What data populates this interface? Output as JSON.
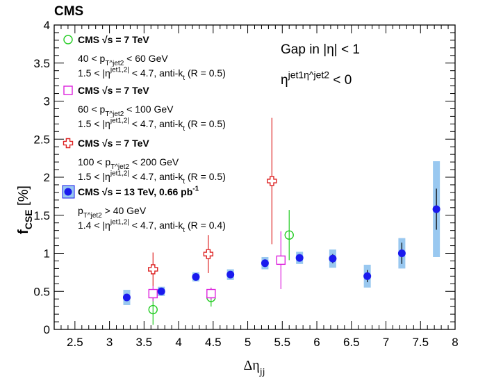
{
  "chart_data": {
    "type": "scatter",
    "title": "CMS",
    "xlabel": "Δη_jj",
    "ylabel": "f_CSE [%]",
    "xlim": [
      2.2,
      8.0
    ],
    "ylim": [
      0,
      4
    ],
    "x_ticks": [
      "2.5",
      "3",
      "3.5",
      "4",
      "4.5",
      "5",
      "5.5",
      "6",
      "6.5",
      "7",
      "7.5",
      "8"
    ],
    "y_ticks": [
      "0",
      "0.5",
      "1",
      "1.5",
      "2",
      "2.5",
      "3",
      "3.5",
      "4"
    ],
    "annotations": [
      "Gap in |η| < 1",
      "η^jet1 η^jet2 < 0"
    ],
    "series": [
      {
        "name": "CMS √s = 7 TeV",
        "lines": [
          "40 < p_T^jet2 < 60 GeV",
          "1.5 < |η^jet1,2| < 4.7, anti-k_t (R = 0.5)"
        ],
        "marker": "open-circle",
        "color": "#22cc22",
        "points": [
          {
            "x": 3.63,
            "y": 0.26,
            "err": 0.2
          },
          {
            "x": 4.47,
            "y": 0.42,
            "err": 0.12
          },
          {
            "x": 5.6,
            "y": 1.24,
            "err": 0.33
          }
        ]
      },
      {
        "name": "CMS √s = 7 TeV",
        "lines": [
          "60 < p_T^jet2 < 100 GeV",
          "1.5 < |η^jet1,2| < 4.7, anti-k_t (R = 0.5)"
        ],
        "marker": "open-square",
        "color": "#dd22dd",
        "points": [
          {
            "x": 3.63,
            "y": 0.47,
            "err": 0.1
          },
          {
            "x": 4.47,
            "y": 0.47,
            "err": 0.08
          },
          {
            "x": 5.48,
            "y": 0.91,
            "err": 0.38
          }
        ]
      },
      {
        "name": "CMS √s = 7 TeV",
        "lines": [
          "100 < p_T^jet2 < 200 GeV",
          "1.5 < |η^jet1,2| < 4.7, anti-k_t (R = 0.5)"
        ],
        "marker": "open-cross",
        "color": "#dd2222",
        "points": [
          {
            "x": 3.63,
            "y": 0.79,
            "err": 0.22
          },
          {
            "x": 4.43,
            "y": 0.99,
            "err": 0.25
          },
          {
            "x": 5.35,
            "y": 1.95,
            "err": 0.83
          }
        ]
      },
      {
        "name": "CMS √s = 13 TeV, 0.66 pb^-1",
        "lines": [
          "p_T^jet2 > 40 GeV",
          "1.4 < |η^jet1,2| < 4.7, anti-k_t (R = 0.4)"
        ],
        "marker": "filled-circle",
        "color": "#1a1aee",
        "band_color": "#99c8f0",
        "points": [
          {
            "x": 3.25,
            "y": 0.42,
            "err": 0.04,
            "sys": 0.1
          },
          {
            "x": 3.75,
            "y": 0.5,
            "err": 0.04,
            "sys": 0.06
          },
          {
            "x": 4.25,
            "y": 0.69,
            "err": 0.04,
            "sys": 0.06
          },
          {
            "x": 4.75,
            "y": 0.72,
            "err": 0.04,
            "sys": 0.07
          },
          {
            "x": 5.25,
            "y": 0.87,
            "err": 0.05,
            "sys": 0.08
          },
          {
            "x": 5.75,
            "y": 0.94,
            "err": 0.05,
            "sys": 0.08
          },
          {
            "x": 6.23,
            "y": 0.93,
            "err": 0.06,
            "sys": 0.12
          },
          {
            "x": 6.73,
            "y": 0.7,
            "err": 0.08,
            "sys": 0.15
          },
          {
            "x": 7.23,
            "y": 1.0,
            "err": 0.14,
            "sys": 0.2
          },
          {
            "x": 7.73,
            "y": 1.58,
            "err": 0.27,
            "sys": 0.63
          }
        ]
      }
    ]
  }
}
